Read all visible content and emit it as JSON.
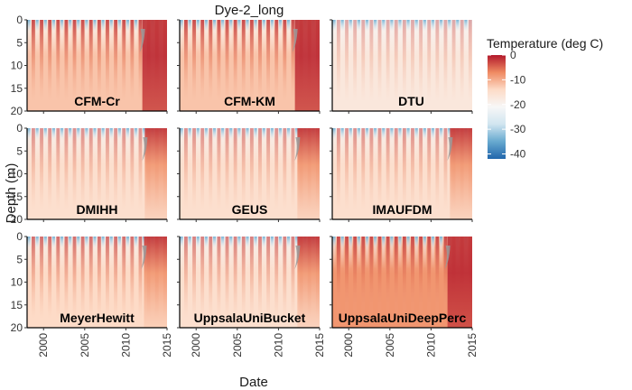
{
  "chart_data": {
    "type": "heatmap",
    "title": "Dye-2_long",
    "xlabel": "Date",
    "ylabel": "Depth (m)",
    "x_range": [
      1998,
      2015
    ],
    "x_ticks": [
      "2000",
      "2005",
      "2010",
      "2015"
    ],
    "y_range": [
      0,
      20
    ],
    "y_reversed": true,
    "y_ticks": [
      "0",
      "5",
      "10",
      "15",
      "20"
    ],
    "legend": {
      "title": "Temperature (deg C)",
      "placement": "right",
      "ticks": [
        "0",
        "-10",
        "-20",
        "-30",
        "-40"
      ],
      "range": [
        -42,
        0
      ],
      "colors": [
        "#b2182b",
        "#ef8a62",
        "#fddbc7",
        "#f7f7f7",
        "#d1e5f0",
        "#67a9cf",
        "#2166ac"
      ]
    },
    "panels": [
      {
        "name": "CFM-Cr",
        "late_warm_start": 2012.0,
        "deep_temp": -12,
        "band_strength": 1.0
      },
      {
        "name": "CFM-KM",
        "late_warm_start": 2012.0,
        "deep_temp": -12,
        "band_strength": 1.0
      },
      {
        "name": "DTU",
        "late_warm_start": null,
        "deep_temp": -17,
        "band_strength": 0.45
      },
      {
        "name": "DMIHH",
        "late_warm_start": 2012.3,
        "deep_temp": -15,
        "band_strength": 0.6
      },
      {
        "name": "GEUS",
        "late_warm_start": 2012.3,
        "deep_temp": -15,
        "band_strength": 0.6
      },
      {
        "name": "IMAUFDM",
        "late_warm_start": 2012.3,
        "deep_temp": -15,
        "band_strength": 0.6
      },
      {
        "name": "MeyerHewitt",
        "late_warm_start": 2012.2,
        "deep_temp": -14,
        "band_strength": 0.8
      },
      {
        "name": "UppsalaUniBucket",
        "late_warm_start": 2012.3,
        "deep_temp": -15,
        "band_strength": 0.7
      },
      {
        "name": "UppsalaUniDeepPerc",
        "late_warm_start": 2012.0,
        "deep_temp": -8,
        "band_strength": 1.0
      }
    ]
  }
}
